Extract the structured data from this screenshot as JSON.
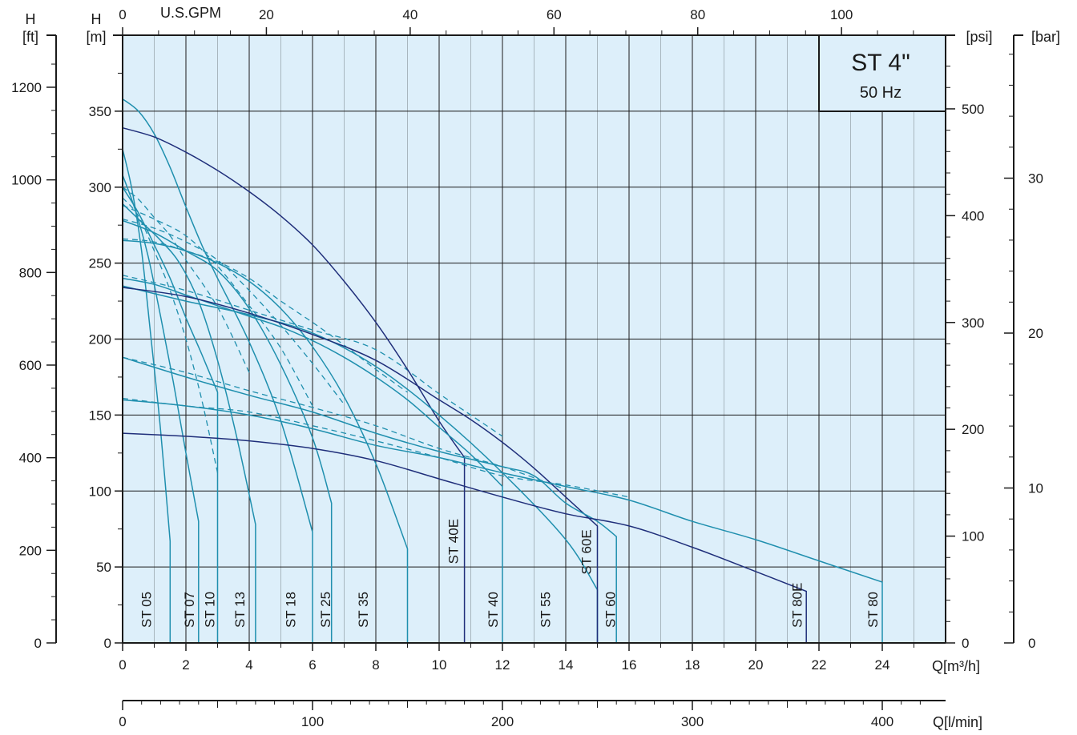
{
  "chart_data": {
    "type": "line",
    "title": "ST 4\"",
    "subtitle": "50 Hz",
    "colors": {
      "plot_bg": "#ddeffa",
      "grid": "#1a1a1a",
      "curve_teal": "#1f8fae",
      "curve_navy": "#1f2e7a",
      "axis": "#1a1a1a"
    },
    "grid": true,
    "x": {
      "label": "Q[m³/h]",
      "min": 0,
      "max": 26,
      "major_ticks": [
        0,
        2,
        4,
        6,
        8,
        10,
        12,
        14,
        16,
        18,
        20,
        22,
        24
      ]
    },
    "y": {
      "label_top": "H",
      "label_unit": "[m]",
      "min": 0,
      "max": 400,
      "major_ticks": [
        0,
        50,
        100,
        150,
        200,
        250,
        300,
        350
      ]
    },
    "x_top": {
      "label": "U.S.GPM",
      "ticks": [
        0,
        20,
        40,
        60,
        80,
        100
      ]
    },
    "x_bottom2": {
      "label": "Q[l/min]",
      "ticks": [
        0,
        100,
        200,
        300,
        400
      ]
    },
    "y_left_ft": {
      "label_top": "H",
      "label_unit": "[ft]",
      "ticks": [
        0,
        200,
        400,
        600,
        800,
        1000,
        1200
      ]
    },
    "y_right_psi": {
      "label": "[psi]",
      "ticks": [
        0,
        100,
        200,
        300,
        400,
        500
      ]
    },
    "y_right_bar": {
      "label": "[bar]",
      "ticks": [
        0,
        10,
        20,
        30
      ]
    },
    "series": [
      {
        "name": "ST 05",
        "color": "teal",
        "points": [
          [
            0,
            325
          ],
          [
            0.3,
            298
          ],
          [
            0.6,
            258
          ],
          [
            0.9,
            200
          ],
          [
            1.2,
            140
          ],
          [
            1.5,
            67
          ],
          [
            1.5,
            0
          ]
        ]
      },
      {
        "name": "ST 07",
        "color": "teal",
        "points": [
          [
            0,
            308
          ],
          [
            0.4,
            285
          ],
          [
            0.8,
            255
          ],
          [
            1.2,
            215
          ],
          [
            1.6,
            172
          ],
          [
            2.0,
            125
          ],
          [
            2.4,
            80
          ],
          [
            2.4,
            0
          ]
        ]
      },
      {
        "name": "ST 10",
        "color": "teal",
        "points": [
          [
            0,
            300
          ],
          [
            0.5,
            283
          ],
          [
            1.0,
            262
          ],
          [
            1.5,
            240
          ],
          [
            2.0,
            214
          ],
          [
            2.5,
            190
          ],
          [
            3.0,
            165
          ],
          [
            3.0,
            0
          ]
        ]
      },
      {
        "name": "ST 13",
        "color": "teal",
        "points": [
          [
            0,
            289
          ],
          [
            0.6,
            277
          ],
          [
            1.2,
            265
          ],
          [
            1.8,
            250
          ],
          [
            2.4,
            225
          ],
          [
            3.0,
            186
          ],
          [
            3.6,
            136
          ],
          [
            4.2,
            78
          ],
          [
            4.2,
            0
          ]
        ]
      },
      {
        "name": "ST 18",
        "color": "teal",
        "points": [
          [
            0,
            358
          ],
          [
            0.5,
            350
          ],
          [
            1.0,
            335
          ],
          [
            1.5,
            313
          ],
          [
            2.0,
            287
          ],
          [
            2.5,
            262
          ],
          [
            3.0,
            240
          ],
          [
            4.0,
            198
          ],
          [
            5.0,
            146
          ],
          [
            6.0,
            73
          ],
          [
            6.0,
            0
          ]
        ]
      },
      {
        "name": "ST 25",
        "color": "teal",
        "points": [
          [
            0,
            278
          ],
          [
            1.0,
            270
          ],
          [
            2.0,
            258
          ],
          [
            3.0,
            245
          ],
          [
            4.0,
            220
          ],
          [
            5.0,
            183
          ],
          [
            6.0,
            135
          ],
          [
            6.6,
            92
          ],
          [
            6.6,
            0
          ]
        ]
      },
      {
        "name": "ST 35",
        "color": "teal",
        "points": [
          [
            0,
            265
          ],
          [
            1.0,
            263
          ],
          [
            2.0,
            258
          ],
          [
            3.0,
            250
          ],
          [
            4.0,
            238
          ],
          [
            5.0,
            220
          ],
          [
            6.0,
            195
          ],
          [
            7.0,
            162
          ],
          [
            8.0,
            118
          ],
          [
            9.0,
            62
          ],
          [
            9.0,
            0
          ]
        ]
      },
      {
        "name": "ST 40E",
        "color": "navy",
        "points": [
          [
            0,
            339
          ],
          [
            1.0,
            333
          ],
          [
            2.0,
            323
          ],
          [
            3.0,
            311
          ],
          [
            4.0,
            297
          ],
          [
            5.0,
            281
          ],
          [
            6.0,
            262
          ],
          [
            7.0,
            238
          ],
          [
            8.0,
            211
          ],
          [
            9.0,
            180
          ],
          [
            10.0,
            146
          ],
          [
            10.8,
            122
          ],
          [
            10.8,
            0
          ]
        ]
      },
      {
        "name": "ST 40",
        "color": "teal",
        "points": [
          [
            0,
            240
          ],
          [
            1.0,
            236
          ],
          [
            2.0,
            229
          ],
          [
            3.0,
            222
          ],
          [
            4.0,
            215
          ],
          [
            5.0,
            208
          ],
          [
            6.0,
            199
          ],
          [
            7.0,
            188
          ],
          [
            8.0,
            175
          ],
          [
            9.0,
            160
          ],
          [
            10.0,
            142
          ],
          [
            11.0,
            124
          ],
          [
            12.0,
            103
          ],
          [
            12.0,
            0
          ]
        ]
      },
      {
        "name": "ST 55",
        "color": "teal",
        "points": [
          [
            0,
            235
          ],
          [
            2.0,
            225
          ],
          [
            4.0,
            216
          ],
          [
            6.0,
            204
          ],
          [
            8.0,
            182
          ],
          [
            10.0,
            150
          ],
          [
            12.0,
            112
          ],
          [
            14.0,
            68
          ],
          [
            15.0,
            35
          ],
          [
            15.0,
            0
          ]
        ]
      },
      {
        "name": "ST 60E",
        "color": "navy",
        "points": [
          [
            0,
            234
          ],
          [
            2.0,
            228
          ],
          [
            4.0,
            217
          ],
          [
            6.0,
            203
          ],
          [
            8.0,
            186
          ],
          [
            10.0,
            160
          ],
          [
            11.0,
            147
          ],
          [
            12.0,
            132
          ],
          [
            13.0,
            115
          ],
          [
            14.0,
            96
          ],
          [
            15.0,
            77
          ],
          [
            15.0,
            0
          ]
        ]
      },
      {
        "name": "ST 60",
        "color": "teal",
        "points": [
          [
            0,
            188
          ],
          [
            2.0,
            175
          ],
          [
            4.0,
            163
          ],
          [
            6.0,
            152
          ],
          [
            8.0,
            138
          ],
          [
            10.0,
            126
          ],
          [
            12.0,
            116
          ],
          [
            13.0,
            110
          ],
          [
            14.0,
            92
          ],
          [
            15.0,
            80
          ],
          [
            15.6,
            70
          ],
          [
            15.6,
            0
          ]
        ]
      },
      {
        "name": "ST 80E",
        "color": "navy",
        "points": [
          [
            0,
            138
          ],
          [
            2.0,
            136
          ],
          [
            4.0,
            133
          ],
          [
            6.0,
            128
          ],
          [
            8.0,
            120
          ],
          [
            10.0,
            108
          ],
          [
            12.0,
            96
          ],
          [
            14.0,
            85
          ],
          [
            16.0,
            77
          ],
          [
            18.0,
            63
          ],
          [
            20.0,
            47
          ],
          [
            21.6,
            34
          ],
          [
            21.6,
            0
          ]
        ]
      },
      {
        "name": "ST 80",
        "color": "teal",
        "points": [
          [
            0,
            160
          ],
          [
            2.0,
            156
          ],
          [
            4.0,
            150
          ],
          [
            6.0,
            141
          ],
          [
            8.0,
            130
          ],
          [
            10.0,
            122
          ],
          [
            12.0,
            112
          ],
          [
            14.0,
            103
          ],
          [
            16.0,
            94
          ],
          [
            18.0,
            80
          ],
          [
            20.0,
            68
          ],
          [
            22.0,
            54
          ],
          [
            24.0,
            40
          ],
          [
            24.0,
            0
          ]
        ]
      }
    ],
    "dashed_curves": [
      {
        "points": [
          [
            0,
            293
          ],
          [
            0.5,
            281
          ],
          [
            1.0,
            258
          ],
          [
            1.5,
            232
          ],
          [
            2.0,
            200
          ],
          [
            2.5,
            160
          ],
          [
            3.0,
            112
          ]
        ]
      },
      {
        "points": [
          [
            0,
            300
          ],
          [
            0.5,
            292
          ],
          [
            1.0,
            280
          ],
          [
            1.5,
            268
          ],
          [
            2.0,
            252
          ],
          [
            3.0,
            221
          ],
          [
            4.0,
            178
          ]
        ]
      },
      {
        "points": [
          [
            0,
            288
          ],
          [
            1.0,
            279
          ],
          [
            2.0,
            268
          ],
          [
            3.0,
            248
          ],
          [
            4.0,
            222
          ],
          [
            5.0,
            194
          ],
          [
            6.0,
            156
          ]
        ]
      },
      {
        "points": [
          [
            0,
            279
          ],
          [
            1.0,
            273
          ],
          [
            2.0,
            264
          ],
          [
            3.0,
            252
          ],
          [
            4.0,
            232
          ],
          [
            5.0,
            209
          ],
          [
            6.0,
            184
          ],
          [
            7.0,
            157
          ]
        ]
      },
      {
        "points": [
          [
            0,
            266
          ],
          [
            1.0,
            264
          ],
          [
            2.0,
            258
          ],
          [
            3.0,
            251
          ],
          [
            4.0,
            240
          ],
          [
            5.0,
            225
          ],
          [
            6.0,
            211
          ],
          [
            7.0,
            196
          ],
          [
            8.0,
            180
          ],
          [
            9.0,
            165
          ]
        ]
      },
      {
        "points": [
          [
            0,
            242
          ],
          [
            2.0,
            232
          ],
          [
            4.0,
            219
          ],
          [
            6.0,
            206
          ],
          [
            8.0,
            193
          ],
          [
            10.0,
            164
          ],
          [
            11.0,
            150
          ],
          [
            12.0,
            136
          ]
        ]
      },
      {
        "points": [
          [
            0,
            188
          ],
          [
            2.0,
            178
          ],
          [
            4.0,
            166
          ],
          [
            6.0,
            155
          ],
          [
            8.0,
            143
          ],
          [
            10.0,
            128
          ],
          [
            12.0,
            116
          ],
          [
            14.0,
            101
          ]
        ]
      },
      {
        "points": [
          [
            0,
            161
          ],
          [
            2.0,
            156
          ],
          [
            4.0,
            152
          ],
          [
            6.0,
            143
          ],
          [
            8.0,
            133
          ],
          [
            10.0,
            122
          ],
          [
            12.0,
            110
          ],
          [
            14.0,
            104
          ],
          [
            16.0,
            96
          ]
        ]
      }
    ]
  }
}
